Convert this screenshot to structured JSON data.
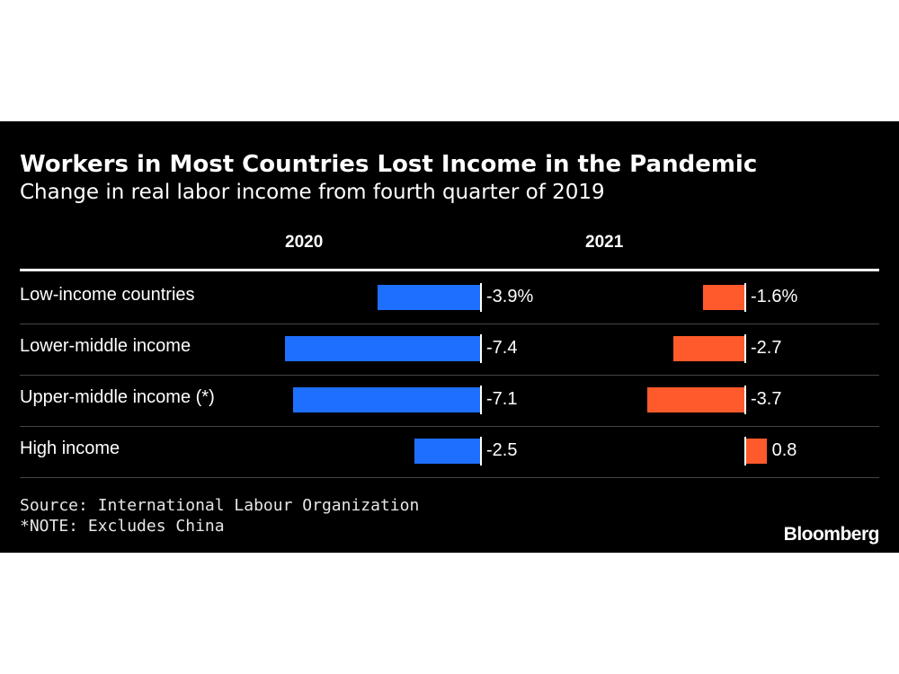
{
  "colors": {
    "background": "#000000",
    "series_2020": "#1f6fff",
    "series_2021": "#ff5a2b"
  },
  "chart_data": {
    "type": "bar",
    "orientation": "horizontal",
    "title": "Workers in Most Countries Lost Income in the Pandemic",
    "subtitle": "Change in real labor income from fourth quarter of 2019",
    "categories": [
      "Low-income countries",
      "Lower-middle income",
      "Upper-middle income (*)",
      "High income"
    ],
    "series": [
      {
        "name": "2020",
        "values": [
          -3.9,
          -7.4,
          -7.1,
          -2.5
        ],
        "labels": [
          "-3.9%",
          "-7.4",
          "-7.1",
          "-2.5"
        ]
      },
      {
        "name": "2021",
        "values": [
          -1.6,
          -2.7,
          -3.7,
          0.8
        ],
        "labels": [
          "-1.6%",
          "-2.7",
          "-3.7",
          "0.8"
        ]
      }
    ],
    "source": "Source: International Labour Organization",
    "note": "*NOTE: Excludes China",
    "brand": "Bloomberg"
  }
}
